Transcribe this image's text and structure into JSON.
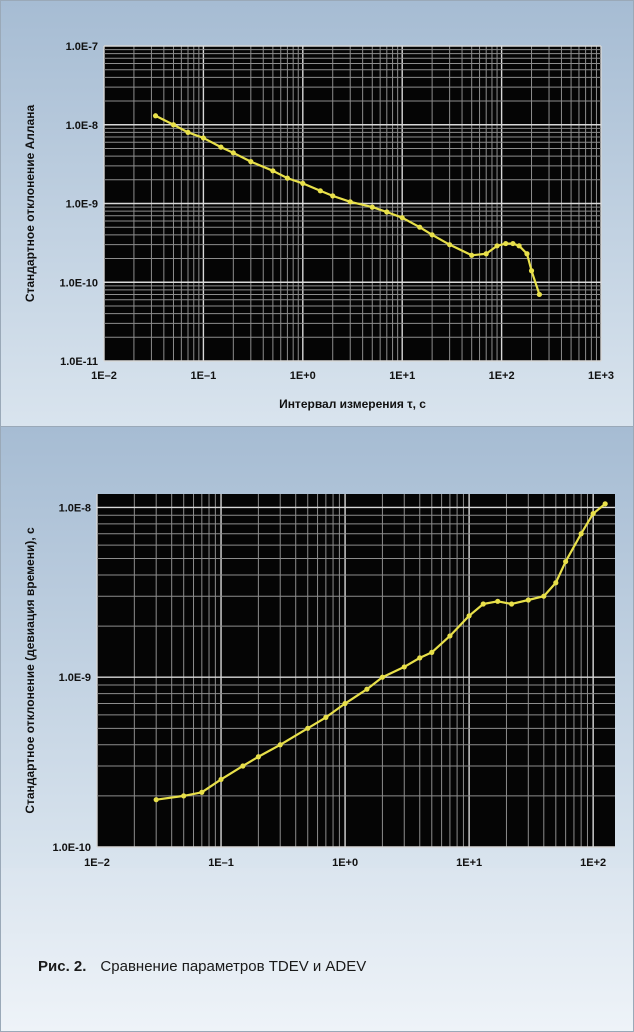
{
  "chart_data": [
    {
      "type": "line",
      "title": "",
      "xlabel": "Интервал измерения τ, с",
      "ylabel": "Стандартное отклонение Аллана",
      "xscale": "log",
      "yscale": "log",
      "xlim": [
        0.01,
        1000
      ],
      "ylim": [
        1e-11,
        1e-07
      ],
      "x_tick_labels": [
        "1E–2",
        "1E–1",
        "1E+0",
        "1E+1",
        "1E+2",
        "1E+3"
      ],
      "y_tick_labels": [
        "1.0E-7",
        "1.0E-8",
        "1.0E-9",
        "1.0E-10",
        "1.0E-11"
      ],
      "grid": true,
      "series_color": "#e8e04a",
      "series": [
        {
          "x": [
            0.033,
            0.05,
            0.07,
            0.1,
            0.15,
            0.2,
            0.3,
            0.5,
            0.7,
            1.0,
            1.5,
            2,
            3,
            5,
            7,
            10,
            15,
            20,
            30,
            50,
            70,
            90,
            110,
            130,
            150,
            180,
            200,
            240
          ],
          "y": [
            1.3e-08,
            1e-08,
            8e-09,
            6.8e-09,
            5.2e-09,
            4.4e-09,
            3.4e-09,
            2.6e-09,
            2.1e-09,
            1.8e-09,
            1.45e-09,
            1.25e-09,
            1.05e-09,
            9e-10,
            7.8e-10,
            6.6e-10,
            5e-10,
            4e-10,
            3e-10,
            2.2e-10,
            2.3e-10,
            2.9e-10,
            3.1e-10,
            3.1e-10,
            2.9e-10,
            2.3e-10,
            1.4e-10,
            7e-11
          ]
        }
      ]
    },
    {
      "type": "line",
      "title": "",
      "xlabel": "Интервал измерения τ, с",
      "ylabel": "Стандартное отклонение (девиация времени), с",
      "xscale": "log",
      "yscale": "log",
      "xlim": [
        0.01,
        150
      ],
      "ylim": [
        1e-10,
        1.2e-08
      ],
      "x_tick_labels": [
        "1E–2",
        "1E–1",
        "1E+0",
        "1E+1",
        "1E+2"
      ],
      "y_tick_labels": [
        "1.0E-8",
        "1.0E-9",
        "1.0E-10"
      ],
      "grid": true,
      "series_color": "#e8e04a",
      "series": [
        {
          "x": [
            0.03,
            0.05,
            0.07,
            0.1,
            0.15,
            0.2,
            0.3,
            0.5,
            0.7,
            1.0,
            1.5,
            2,
            3,
            4,
            5,
            7,
            10,
            13,
            17,
            22,
            30,
            40,
            50,
            60,
            80,
            100,
            125
          ],
          "y": [
            1.9e-10,
            2e-10,
            2.1e-10,
            2.5e-10,
            3e-10,
            3.4e-10,
            4e-10,
            5e-10,
            5.8e-10,
            7e-10,
            8.5e-10,
            1e-09,
            1.15e-09,
            1.3e-09,
            1.4e-09,
            1.75e-09,
            2.3e-09,
            2.7e-09,
            2.8e-09,
            2.7e-09,
            2.85e-09,
            3e-09,
            3.6e-09,
            4.8e-09,
            7e-09,
            9.2e-09,
            1.05e-08
          ]
        }
      ]
    }
  ],
  "caption": {
    "lead": "Рис. 2.",
    "text": "Сравнение параметров TDEV и ADEV"
  }
}
